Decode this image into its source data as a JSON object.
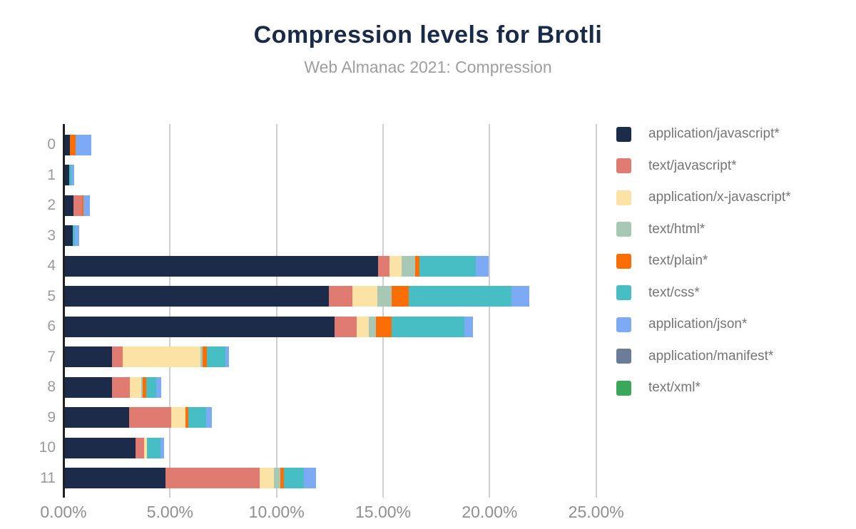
{
  "title": "Compression levels for Brotli",
  "subtitle": "Web Almanac 2021: Compression",
  "colors": {
    "title_color": "#1a2b49",
    "subtitle_color": "#9e9e9e",
    "axis_tick_color": "#8f8f8f",
    "y_label_color": "#9a9a9a",
    "legend_text_color": "#757575",
    "gridline_color": "#d0d0d0",
    "axis_line_color": "#212121"
  },
  "chart_data": {
    "type": "bar",
    "stacked": true,
    "orientation": "horizontal",
    "title": "Compression levels for Brotli",
    "subtitle": "Web Almanac 2021: Compression",
    "xlabel": "",
    "ylabel": "",
    "xlim": [
      0,
      25.45
    ],
    "grid": true,
    "legend_position": "right",
    "categories": [
      "0",
      "1",
      "2",
      "3",
      "4",
      "5",
      "6",
      "7",
      "8",
      "9",
      "10",
      "11"
    ],
    "x_ticks": [
      {
        "label": "0.00%",
        "value": 0
      },
      {
        "label": "5.00%",
        "value": 5
      },
      {
        "label": "10.00%",
        "value": 10
      },
      {
        "label": "15.00%",
        "value": 15
      },
      {
        "label": "20.00%",
        "value": 20
      },
      {
        "label": "25.00%",
        "value": 25
      }
    ],
    "series": [
      {
        "name": "application/javascript*",
        "color": "#1c2b49",
        "values": [
          0.25,
          0.2,
          0.4,
          0.38,
          14.7,
          12.4,
          12.65,
          2.2,
          2.2,
          3.0,
          3.3,
          4.73
        ]
      },
      {
        "name": "text/javascript*",
        "color": "#e07b72",
        "values": [
          0,
          0,
          0.4,
          0,
          0.55,
          1.1,
          1.05,
          0.5,
          0.85,
          2.0,
          0.42,
          4.42
        ]
      },
      {
        "name": "application/x-javascript*",
        "color": "#fde2a5",
        "values": [
          0,
          0,
          0,
          0,
          0.55,
          1.15,
          0.55,
          3.65,
          0.54,
          0.65,
          0.12,
          0.65
        ]
      },
      {
        "name": "text/html*",
        "color": "#a6c8b4",
        "values": [
          0,
          0,
          0,
          0,
          0.65,
          0.7,
          0.35,
          0.1,
          0.07,
          0,
          0,
          0.31
        ]
      },
      {
        "name": "text/plain*",
        "color": "#fb6d05",
        "values": [
          0.25,
          0,
          0.08,
          0,
          0.18,
          0.8,
          0.75,
          0.2,
          0.17,
          0.13,
          0,
          0.16
        ]
      },
      {
        "name": "text/css*",
        "color": "#47bdc4",
        "values": [
          0,
          0.1,
          0,
          0.1,
          2.65,
          4.8,
          3.4,
          0.9,
          0.46,
          0.86,
          0.65,
          0.96
        ]
      },
      {
        "name": "application/json*",
        "color": "#7caaf4",
        "values": [
          0.75,
          0.15,
          0.3,
          0.2,
          0.6,
          0.85,
          0.4,
          0.15,
          0.22,
          0.26,
          0.17,
          0.56
        ]
      },
      {
        "name": "application/manifest*",
        "color": "#6c7b97",
        "values": [
          0,
          0,
          0,
          0,
          0,
          0,
          0,
          0,
          0,
          0,
          0,
          0
        ]
      },
      {
        "name": "text/xml*",
        "color": "#3aa85b",
        "values": [
          0,
          0,
          0,
          0,
          0,
          0,
          0,
          0,
          0,
          0,
          0,
          0
        ]
      }
    ]
  }
}
